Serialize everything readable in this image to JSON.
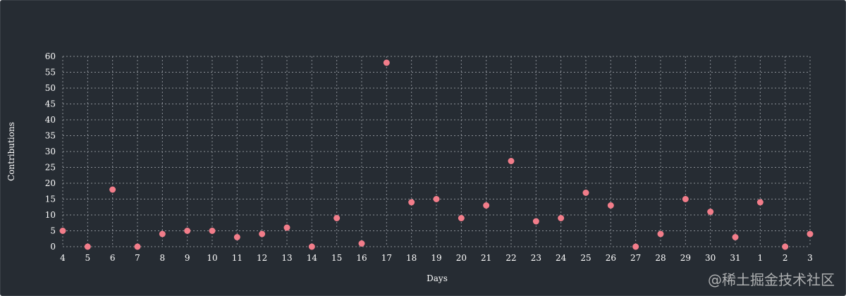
{
  "chart_data": {
    "type": "scatter",
    "x": [
      "4",
      "5",
      "6",
      "7",
      "8",
      "9",
      "10",
      "11",
      "12",
      "13",
      "14",
      "15",
      "16",
      "17",
      "18",
      "19",
      "20",
      "21",
      "22",
      "23",
      "24",
      "25",
      "26",
      "27",
      "28",
      "29",
      "30",
      "31",
      "1",
      "2",
      "3"
    ],
    "values": [
      5,
      0,
      18,
      0,
      4,
      5,
      5,
      3,
      4,
      6,
      0,
      9,
      1,
      58,
      14,
      15,
      9,
      13,
      27,
      8,
      9,
      17,
      13,
      0,
      4,
      15,
      11,
      3,
      14,
      0,
      4
    ],
    "xlabel": "Days",
    "ylabel": "Contributions",
    "ylim": [
      0,
      60
    ],
    "yticks": [
      "0",
      "5",
      "10",
      "15",
      "20",
      "25",
      "30",
      "35",
      "40",
      "45",
      "50",
      "55",
      "60"
    ],
    "grid": true,
    "colors": {
      "point": "#f27d8a",
      "grid": "#8a8f96",
      "background": "#262c33",
      "text": "#ffffff"
    }
  },
  "watermark": "@稀土掘金技术社区"
}
